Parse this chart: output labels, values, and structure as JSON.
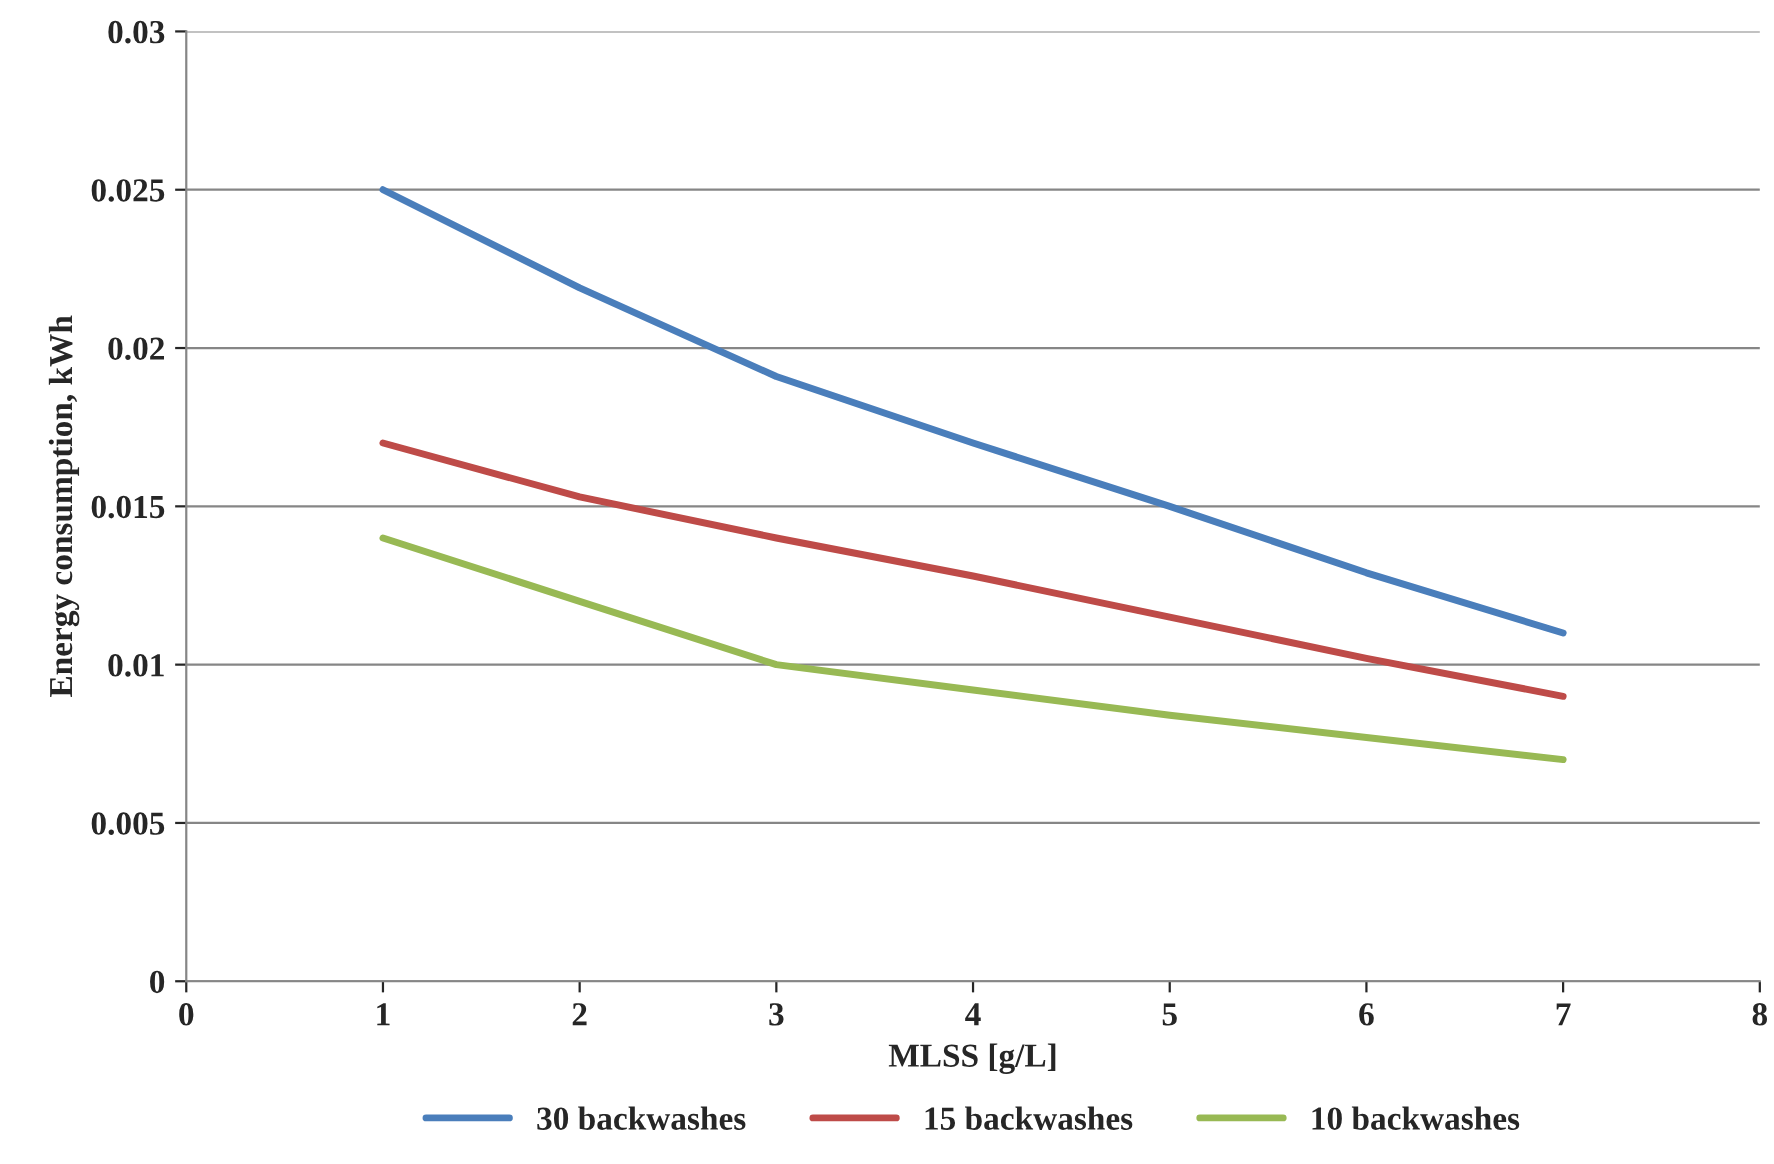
{
  "chart_data": {
    "type": "line",
    "xlabel": "MLSS [g/L]",
    "ylabel": "Energy consumption, kWh",
    "x": [
      1,
      2,
      3,
      4,
      5,
      6,
      7
    ],
    "series": [
      {
        "name": "30 backwashes",
        "color": "#4a7ebb",
        "values": [
          0.025,
          0.0219,
          0.0191,
          0.017,
          0.015,
          0.0129,
          0.011
        ]
      },
      {
        "name": "15 backwashes",
        "color": "#be4b48",
        "values": [
          0.017,
          0.0153,
          0.014,
          0.0128,
          0.0115,
          0.0102,
          0.009
        ]
      },
      {
        "name": "10 backwashes",
        "color": "#98b954",
        "values": [
          0.014,
          0.012,
          0.01,
          0.0092,
          0.0084,
          0.0077,
          0.007
        ]
      }
    ],
    "xlim": [
      0,
      8
    ],
    "xticks": [
      0,
      1,
      2,
      3,
      4,
      5,
      6,
      7,
      8
    ],
    "ylim": [
      0,
      0.03
    ],
    "yticks": [
      0,
      0.005,
      0.01,
      0.015,
      0.02,
      0.025,
      0.03
    ],
    "grid": "y",
    "legend": "bottom",
    "marker": "none",
    "line_style": "solid"
  }
}
